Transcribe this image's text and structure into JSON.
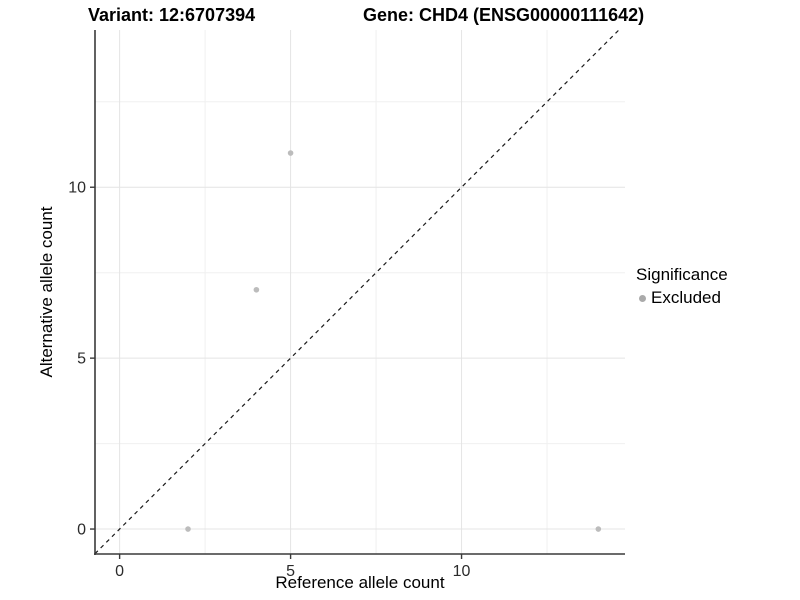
{
  "chart_data": {
    "type": "scatter",
    "title_left": "Variant: 12:6707394",
    "title_right": "Gene: CHD4 (ENSG00000111642)",
    "xlabel": "Reference allele count",
    "ylabel": "Alternative allele count",
    "xlim": [
      -0.72,
      14.78
    ],
    "ylim": [
      -0.73,
      14.6
    ],
    "x_major_ticks": [
      0,
      5,
      10
    ],
    "y_major_ticks": [
      0,
      5,
      10
    ],
    "x_minor_ticks": [
      2.5,
      7.5,
      12.5
    ],
    "y_minor_ticks": [
      2.5,
      7.5,
      12.5
    ],
    "grid": true,
    "identity_line": {
      "style": "dashed",
      "from": [
        -0.72,
        -0.72
      ],
      "to": [
        14.6,
        14.6
      ]
    },
    "series": [
      {
        "name": "Excluded",
        "color": "#bcbcbc",
        "points": [
          [
            2,
            0
          ],
          [
            4,
            7
          ],
          [
            5,
            11
          ],
          [
            14,
            0
          ]
        ]
      }
    ],
    "legend": {
      "position": "right",
      "title": "Significance",
      "entries": [
        {
          "label": "Excluded",
          "color": "#aaaaaa"
        }
      ]
    },
    "colors": {
      "grid_major": "#e4e4e4",
      "grid_minor": "#f0f0f0",
      "axis_line": "#3a3a3a",
      "tick": "#3a3a3a",
      "identity": "#1a1a1a",
      "tick_label": "#2b2b2b"
    }
  }
}
